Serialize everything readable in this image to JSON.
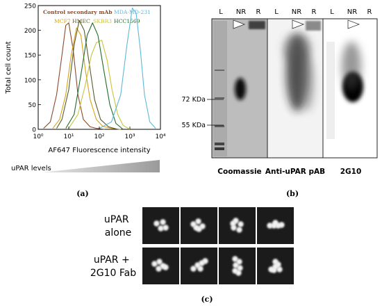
{
  "panel_a": {
    "label": "(a)",
    "legend": {
      "control": {
        "text": "Control secondary mAb",
        "color": "#8b4a2b"
      },
      "mda": {
        "text": "MDA-MD-231",
        "color": "#5fb8d8"
      },
      "mcf7": {
        "text": "MCF7",
        "color": "#d6a21a"
      },
      "hmec": {
        "text": "HMEC",
        "color": "#5a5a2a"
      },
      "skbr3": {
        "text": "SKBR3",
        "color": "#c8c43a"
      },
      "hcc": {
        "text": "HCC1569",
        "color": "#1e6b2a"
      }
    },
    "ylabel": "Total cell count",
    "xlabel": "AF647 Fluorescence intensity",
    "uparlevels": "uPAR levels"
  },
  "chart_data": {
    "type": "line",
    "xscale": "log",
    "xlim": [
      1,
      10000
    ],
    "ylim": [
      0,
      250
    ],
    "yticks": [
      0,
      50,
      100,
      150,
      200,
      250
    ],
    "xticks": [
      "10⁰",
      "10¹",
      "10²",
      "10³",
      "10⁴"
    ],
    "xlabel": "AF647 Fluorescence intensity",
    "ylabel": "Total cell count",
    "series": [
      {
        "name": "Control secondary mAb",
        "color": "#8b4a2b",
        "x": [
          1.5,
          2.5,
          4,
          6,
          8,
          10,
          14,
          20,
          30,
          50,
          80,
          150
        ],
        "y": [
          2,
          15,
          70,
          150,
          210,
          215,
          160,
          70,
          20,
          5,
          2,
          0
        ]
      },
      {
        "name": "MCF7",
        "color": "#d6a21a",
        "x": [
          3,
          5,
          8,
          12,
          18,
          25,
          35,
          50,
          80,
          130,
          250,
          500
        ],
        "y": [
          2,
          20,
          70,
          150,
          205,
          190,
          120,
          60,
          20,
          6,
          2,
          0
        ]
      },
      {
        "name": "HMEC",
        "color": "#5a5a2a",
        "x": [
          4,
          6,
          10,
          15,
          22,
          32,
          45,
          70,
          110,
          200,
          400
        ],
        "y": [
          2,
          20,
          80,
          170,
          220,
          200,
          140,
          60,
          20,
          5,
          0
        ]
      },
      {
        "name": "SKBR3",
        "color": "#c8c43a",
        "x": [
          10,
          20,
          35,
          55,
          80,
          120,
          180,
          260,
          400,
          600,
          1000
        ],
        "y": [
          2,
          30,
          90,
          150,
          175,
          180,
          140,
          80,
          30,
          8,
          0
        ]
      },
      {
        "name": "HCC1569",
        "color": "#1e6b2a",
        "x": [
          8,
          15,
          25,
          40,
          60,
          90,
          140,
          220,
          350,
          600
        ],
        "y": [
          2,
          30,
          110,
          190,
          215,
          190,
          120,
          50,
          12,
          0
        ]
      },
      {
        "name": "MDA-MD-231",
        "color": "#5fb8d8",
        "x": [
          100,
          250,
          500,
          800,
          1200,
          1600,
          2200,
          3000,
          4500,
          7000
        ],
        "y": [
          2,
          15,
          70,
          170,
          245,
          235,
          160,
          70,
          15,
          2
        ]
      }
    ]
  },
  "panel_b": {
    "label": "(b)",
    "markers": {
      "m72": "72 KDa",
      "m55": "55 KDa"
    },
    "blots": [
      {
        "title": "Coomassie",
        "lanes": [
          "L",
          "NR",
          "R"
        ]
      },
      {
        "title": "Anti-uPAR pAB",
        "lanes": [
          "L",
          "NR",
          "R"
        ]
      },
      {
        "title": "2G10",
        "lanes": [
          "L",
          "NR",
          "R"
        ]
      }
    ]
  },
  "panel_c": {
    "label": "(c)",
    "row1_label": [
      "uPAR",
      "alone"
    ],
    "row2_label": [
      "uPAR +",
      "2G10 Fab"
    ]
  }
}
